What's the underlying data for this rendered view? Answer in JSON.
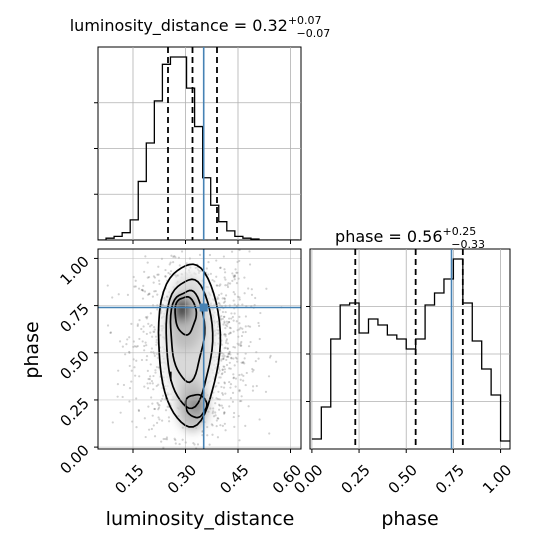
{
  "chart_data": [
    {
      "type": "histogram",
      "panel": "top-left",
      "title_param": "luminosity_distance",
      "title_value": "0.32",
      "title_upper": "+0.07",
      "title_lower": "−0.07",
      "xlim": [
        0.05,
        0.63
      ],
      "ylim": [
        0,
        1
      ],
      "bins": [
        0.05,
        0.073,
        0.096,
        0.119,
        0.142,
        0.165,
        0.188,
        0.211,
        0.234,
        0.257,
        0.28,
        0.303,
        0.326,
        0.349,
        0.372,
        0.395,
        0.418,
        0.441,
        0.464,
        0.487,
        0.51,
        0.533,
        0.556,
        0.579,
        0.602,
        0.625
      ],
      "counts": [
        0.0,
        0.01,
        0.02,
        0.04,
        0.11,
        0.32,
        0.53,
        0.76,
        0.96,
        1.0,
        1.0,
        0.83,
        0.62,
        0.34,
        0.19,
        0.1,
        0.05,
        0.02,
        0.01,
        0.005,
        0.0,
        0.0,
        0.0,
        0.0,
        0.0
      ],
      "quantiles": [
        0.25,
        0.32,
        0.39
      ],
      "truth": 0.352
    },
    {
      "type": "histogram",
      "panel": "bottom-right",
      "title_param": "phase",
      "title_value": "0.56",
      "title_upper": "+0.25",
      "title_lower": "−0.33",
      "xlabel": "phase",
      "xticks": [
        "0.00",
        "0.25",
        "0.50",
        "0.75",
        "1.00"
      ],
      "xtick_values": [
        0,
        0.25,
        0.5,
        0.75,
        1.0
      ],
      "xlim": [
        -0.01,
        1.05
      ],
      "ylim": [
        0,
        1
      ],
      "bins": [
        0.0,
        0.05,
        0.1,
        0.15,
        0.2,
        0.25,
        0.3,
        0.35,
        0.4,
        0.45,
        0.5,
        0.55,
        0.6,
        0.65,
        0.7,
        0.75,
        0.8,
        0.85,
        0.9,
        0.95,
        1.0,
        1.05
      ],
      "counts": [
        0.05,
        0.21,
        0.55,
        0.72,
        0.73,
        0.58,
        0.65,
        0.62,
        0.57,
        0.55,
        0.5,
        0.55,
        0.72,
        0.78,
        0.85,
        0.95,
        0.73,
        0.54,
        0.4,
        0.27,
        0.04
      ],
      "quantiles": [
        0.23,
        0.55,
        0.8
      ],
      "truth": 0.74
    },
    {
      "type": "2d-density",
      "panel": "bottom-left",
      "xlabel": "luminosity_distance",
      "ylabel": "phase",
      "xticks": [
        "0.15",
        "0.30",
        "0.45",
        "0.60"
      ],
      "xtick_values": [
        0.15,
        0.3,
        0.45,
        0.6
      ],
      "yticks": [
        "0.00",
        "0.25",
        "0.50",
        "0.75",
        "1.00"
      ],
      "ytick_values": [
        0,
        0.25,
        0.5,
        0.75,
        1.0
      ],
      "xlim": [
        0.05,
        0.63
      ],
      "ylim": [
        -0.01,
        1.05
      ],
      "truth": [
        0.352,
        0.74
      ],
      "peak": [
        0.29,
        0.73
      ],
      "contour_levels": 4,
      "colors": {
        "truth": "#4682b4",
        "ink": "#000000",
        "density": "#888888"
      }
    }
  ]
}
